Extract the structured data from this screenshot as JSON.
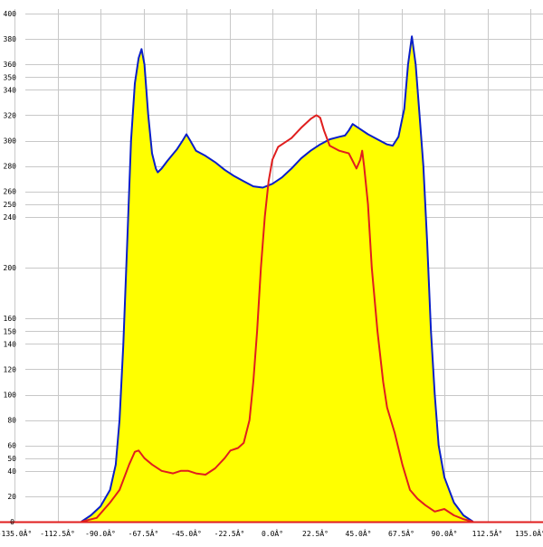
{
  "chart_data": {
    "type": "area",
    "xlim": [
      -135,
      135
    ],
    "ylim": [
      0,
      400
    ],
    "grid": true,
    "x_ticks": [
      {
        "value": -135,
        "label": "-135.0Â°"
      },
      {
        "value": -112.5,
        "label": "-112.5Â°"
      },
      {
        "value": -90,
        "label": "-90.0Â°"
      },
      {
        "value": -67.5,
        "label": "-67.5Â°"
      },
      {
        "value": -45,
        "label": "-45.0Â°"
      },
      {
        "value": -22.5,
        "label": "-22.5Â°"
      },
      {
        "value": 0,
        "label": "0.0Â°"
      },
      {
        "value": 22.5,
        "label": "22.5Â°"
      },
      {
        "value": 45,
        "label": "45.0Â°"
      },
      {
        "value": 67.5,
        "label": "67.5Â°"
      },
      {
        "value": 90,
        "label": "90.0Â°"
      },
      {
        "value": 112.5,
        "label": "112.5Â°"
      },
      {
        "value": 135,
        "label": "135.0Â°"
      }
    ],
    "y_ticks": [
      20,
      40,
      50,
      60,
      80,
      100,
      120,
      140,
      150,
      160,
      200,
      240,
      250,
      260,
      280,
      300,
      320,
      340,
      350,
      360,
      380,
      400
    ],
    "y_tick_labels": [
      "20",
      "40",
      "50",
      "60",
      "80",
      "100",
      "120",
      "140",
      "150",
      "160",
      "200",
      "240",
      "250",
      "260",
      "280",
      "300",
      "320",
      "340",
      "350",
      "360",
      "380",
      "400"
    ],
    "series": [
      {
        "fill": "#ffff00",
        "stroke": "#0a1ec8",
        "points": [
          [
            -100,
            0
          ],
          [
            -95,
            5
          ],
          [
            -90,
            12
          ],
          [
            -85,
            25
          ],
          [
            -82,
            45
          ],
          [
            -80,
            80
          ],
          [
            -78,
            140
          ],
          [
            -76,
            220
          ],
          [
            -74,
            300
          ],
          [
            -72,
            345
          ],
          [
            -70,
            365
          ],
          [
            -68.5,
            372
          ],
          [
            -67,
            360
          ],
          [
            -65,
            320
          ],
          [
            -63,
            290
          ],
          [
            -61,
            278
          ],
          [
            -60,
            275
          ],
          [
            -58,
            278
          ],
          [
            -55,
            284
          ],
          [
            -50,
            293
          ],
          [
            -47,
            300
          ],
          [
            -45,
            305
          ],
          [
            -43,
            300
          ],
          [
            -40,
            292
          ],
          [
            -35,
            288
          ],
          [
            -30,
            283
          ],
          [
            -25,
            277
          ],
          [
            -20,
            272
          ],
          [
            -15,
            268
          ],
          [
            -10,
            264
          ],
          [
            -5,
            263
          ],
          [
            0,
            266
          ],
          [
            5,
            271
          ],
          [
            10,
            278
          ],
          [
            15,
            286
          ],
          [
            20,
            292
          ],
          [
            25,
            297
          ],
          [
            30,
            301
          ],
          [
            35,
            303
          ],
          [
            38,
            304
          ],
          [
            40,
            308
          ],
          [
            42,
            313
          ],
          [
            45,
            310
          ],
          [
            50,
            305
          ],
          [
            55,
            301
          ],
          [
            60,
            297
          ],
          [
            63,
            296
          ],
          [
            66,
            303
          ],
          [
            69,
            325
          ],
          [
            71,
            360
          ],
          [
            73,
            382
          ],
          [
            75,
            360
          ],
          [
            77,
            320
          ],
          [
            79,
            280
          ],
          [
            81,
            220
          ],
          [
            83,
            150
          ],
          [
            85,
            100
          ],
          [
            87,
            60
          ],
          [
            90,
            35
          ],
          [
            95,
            15
          ],
          [
            100,
            5
          ],
          [
            105,
            0
          ]
        ]
      },
      {
        "stroke": "#e01e1e",
        "points": [
          [
            -100,
            0
          ],
          [
            -92,
            3
          ],
          [
            -85,
            15
          ],
          [
            -80,
            25
          ],
          [
            -75,
            45
          ],
          [
            -72,
            55
          ],
          [
            -70,
            56
          ],
          [
            -67,
            50
          ],
          [
            -63,
            45
          ],
          [
            -58,
            40
          ],
          [
            -52,
            38
          ],
          [
            -48,
            40
          ],
          [
            -44,
            40
          ],
          [
            -40,
            38
          ],
          [
            -35,
            37
          ],
          [
            -30,
            42
          ],
          [
            -25,
            50
          ],
          [
            -22,
            56
          ],
          [
            -18,
            58
          ],
          [
            -15,
            62
          ],
          [
            -12,
            80
          ],
          [
            -10,
            110
          ],
          [
            -8,
            150
          ],
          [
            -6,
            200
          ],
          [
            -4,
            240
          ],
          [
            -2,
            268
          ],
          [
            0,
            285
          ],
          [
            3,
            295
          ],
          [
            5,
            297
          ],
          [
            10,
            302
          ],
          [
            15,
            310
          ],
          [
            20,
            317
          ],
          [
            23,
            320
          ],
          [
            25,
            318
          ],
          [
            27,
            308
          ],
          [
            30,
            296
          ],
          [
            35,
            292
          ],
          [
            40,
            290
          ],
          [
            42,
            284
          ],
          [
            44,
            278
          ],
          [
            46,
            285
          ],
          [
            47,
            292
          ],
          [
            48,
            280
          ],
          [
            50,
            250
          ],
          [
            52,
            200
          ],
          [
            55,
            150
          ],
          [
            58,
            110
          ],
          [
            60,
            90
          ],
          [
            64,
            70
          ],
          [
            68,
            45
          ],
          [
            72,
            25
          ],
          [
            76,
            18
          ],
          [
            80,
            13
          ],
          [
            85,
            8
          ],
          [
            90,
            10
          ],
          [
            95,
            5
          ],
          [
            100,
            2
          ],
          [
            105,
            0
          ]
        ]
      }
    ]
  }
}
